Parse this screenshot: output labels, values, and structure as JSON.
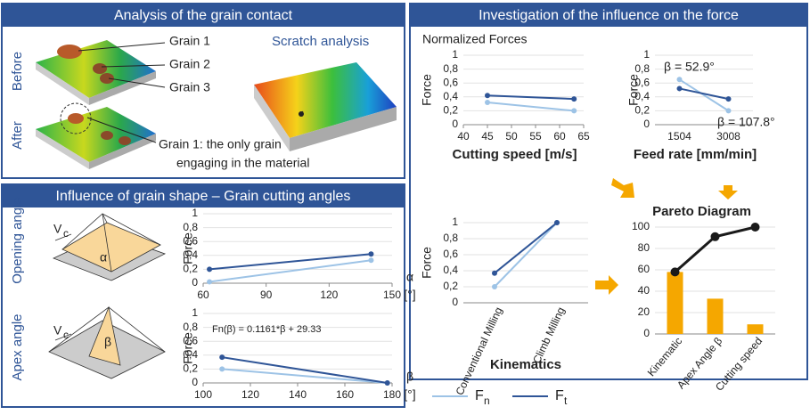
{
  "panels": {
    "grain_contact": {
      "title": "Analysis of the grain contact",
      "before": "Before",
      "after": "After",
      "grain1": "Grain 1",
      "grain2": "Grain 2",
      "grain3": "Grain 3",
      "scratch": "Scratch analysis",
      "note": "Grain 1: the only grain",
      "note2": "engaging in the material"
    },
    "grain_shape": {
      "title": "Influence of grain shape – Grain cutting angles",
      "opening": "Opening angle",
      "apex": "Apex angle",
      "vc": "V",
      "vc_sub": "c",
      "alpha": "α",
      "beta": "β"
    },
    "influence": {
      "title": "Investigation of the influence on the force",
      "subtitle": "Normalized Forces"
    }
  },
  "legend": [
    {
      "name": "F",
      "sub": "n",
      "color": "#9dc3e6"
    },
    {
      "name": "F",
      "sub": "t",
      "color": "#2f5597"
    }
  ],
  "chart_data": [
    {
      "type": "line",
      "ylabel": "Force",
      "xlabel": "α",
      "xunit": "[°]",
      "x": [
        63,
        140
      ],
      "xlim": [
        60,
        150
      ],
      "xticks": [
        60,
        90,
        120,
        150
      ],
      "ylim": [
        0,
        1
      ],
      "yticks": [
        0,
        {
          "value": 0.2,
          "label": "0,2"
        },
        {
          "value": 0.4,
          "label": "0,4"
        },
        {
          "value": 0.6,
          "label": "0,6"
        },
        {
          "value": 0.8,
          "label": "0,8"
        },
        1
      ],
      "grid": true,
      "series": [
        {
          "color": "#9dc3e6",
          "values": [
            0.02,
            0.33
          ]
        },
        {
          "color": "#2f5597",
          "values": [
            0.2,
            0.42
          ]
        }
      ]
    },
    {
      "type": "line",
      "ylabel": "Force",
      "xlabel": "β",
      "xunit": "[°]",
      "annotation": "Fn(β) = 0.1161*β + 29.33",
      "x": [
        108,
        178
      ],
      "xlim": [
        100,
        180
      ],
      "xticks": [
        100,
        120,
        140,
        160,
        180
      ],
      "ylim": [
        0,
        1
      ],
      "yticks": [
        0,
        {
          "value": 0.2,
          "label": "0,2"
        },
        {
          "value": 0.4,
          "label": "0,4"
        },
        {
          "value": 0.6,
          "label": "0,6"
        },
        {
          "value": 0.8,
          "label": "0,8"
        },
        1
      ],
      "grid": true,
      "series": [
        {
          "color": "#9dc3e6",
          "values": [
            0.2,
            0.0
          ]
        },
        {
          "color": "#2f5597",
          "values": [
            0.37,
            0.0
          ]
        }
      ]
    },
    {
      "type": "line",
      "ylabel": "Force",
      "xlabel": "Cutting speed [m/s]",
      "x": [
        45,
        63
      ],
      "xlim": [
        40,
        65
      ],
      "xticks": [
        40,
        45,
        50,
        55,
        60,
        65
      ],
      "ylim": [
        0,
        1
      ],
      "yticks": [
        0,
        {
          "value": 0.2,
          "label": "0,2"
        },
        {
          "value": 0.4,
          "label": "0,4"
        },
        {
          "value": 0.6,
          "label": "0,6"
        },
        {
          "value": 0.8,
          "label": "0,8"
        },
        1
      ],
      "grid": true,
      "series": [
        {
          "color": "#9dc3e6",
          "values": [
            0.32,
            0.2
          ]
        },
        {
          "color": "#2f5597",
          "values": [
            0.42,
            0.37
          ]
        }
      ]
    },
    {
      "type": "line",
      "ylabel": "Force",
      "xlabel": "Feed rate [mm/min]",
      "annotations": [
        "β = 52.9°",
        "β = 107.8°"
      ],
      "categories": [
        "1504",
        "3008"
      ],
      "ylim": [
        0,
        1
      ],
      "yticks": [
        0,
        {
          "value": 0.2,
          "label": "0,2"
        },
        {
          "value": 0.4,
          "label": "0,4"
        },
        {
          "value": 0.6,
          "label": "0,6"
        },
        {
          "value": 0.8,
          "label": "0,8"
        },
        1
      ],
      "grid": true,
      "series": [
        {
          "color": "#9dc3e6",
          "values": [
            0.65,
            0.2
          ]
        },
        {
          "color": "#2f5597",
          "values": [
            0.52,
            0.37
          ]
        }
      ]
    },
    {
      "type": "line",
      "ylabel": "Force",
      "xlabel": "Kinematics",
      "categories": [
        "Conventional Milling",
        "Climb Milling"
      ],
      "ylim": [
        0,
        1
      ],
      "yticks": [
        0,
        {
          "value": 0.2,
          "label": "0,2"
        },
        {
          "value": 0.4,
          "label": "0,4"
        },
        {
          "value": 0.6,
          "label": "0,6"
        },
        {
          "value": 0.8,
          "label": "0,8"
        },
        1
      ],
      "grid": true,
      "series": [
        {
          "color": "#9dc3e6",
          "values": [
            0.2,
            1.0
          ]
        },
        {
          "color": "#2f5597",
          "values": [
            0.37,
            1.0
          ]
        }
      ]
    },
    {
      "type": "pareto",
      "title": "Pareto Diagram",
      "categories": [
        "Kinematic",
        "Apex Angle β",
        "Cutting speed"
      ],
      "values": [
        58,
        33,
        9
      ],
      "color": "#f5a700",
      "line_values": [
        58,
        91,
        100
      ],
      "line_color": "#1a1a1a",
      "ylim": [
        0,
        100
      ],
      "yticks": [
        0,
        20,
        40,
        60,
        80,
        100
      ],
      "grid": true
    }
  ]
}
